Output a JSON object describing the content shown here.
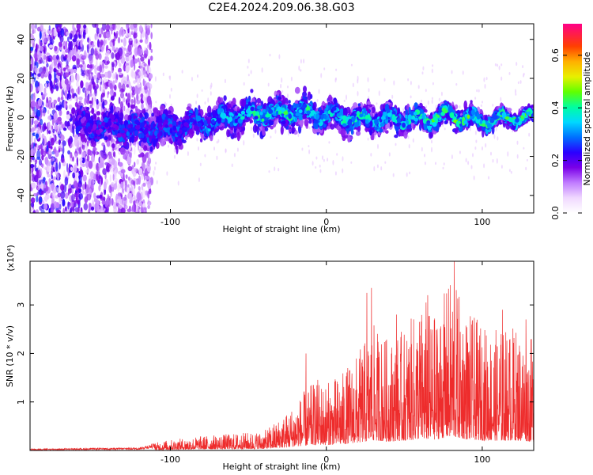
{
  "title": "C2E4.2024.209.06.38.G03",
  "chart_data": [
    {
      "type": "heatmap",
      "xlabel": "Height of straight line (km)",
      "ylabel": "Frequency (Hz)",
      "xlim": [
        -190,
        133
      ],
      "ylim": [
        -49,
        48
      ],
      "x_ticks": [
        -100,
        0,
        100
      ],
      "y_ticks": [
        -40,
        -20,
        0,
        20,
        40
      ],
      "colorbar": {
        "label": "Normalized spectral amplitude",
        "range": [
          0,
          0.72
        ],
        "ticks": [
          0.0,
          0.2,
          0.4,
          0.6
        ],
        "tick_labels": [
          "0.0",
          "0.2",
          "0.4",
          "0.6"
        ]
      },
      "profile": {
        "x": [
          -160,
          -140,
          -120,
          -100,
          -80,
          -60,
          -40,
          -20,
          0,
          20,
          40,
          60,
          80,
          100,
          120,
          133
        ],
        "center_freq": [
          -4,
          -5,
          -6,
          -6,
          -3,
          1,
          2,
          3,
          1,
          -1,
          -1,
          -1,
          1,
          -2,
          0,
          0
        ],
        "half_width": [
          10,
          12,
          14,
          12,
          10,
          11,
          11,
          12,
          10,
          11,
          10,
          9,
          8,
          7,
          6,
          5
        ],
        "peak_amplitude": [
          0.25,
          0.3,
          0.3,
          0.3,
          0.35,
          0.4,
          0.45,
          0.45,
          0.4,
          0.45,
          0.4,
          0.45,
          0.5,
          0.45,
          0.5,
          0.45
        ]
      },
      "noise_region": {
        "x_start": -190,
        "x_end": -112
      }
    },
    {
      "type": "line",
      "xlabel": "Height of straight line (km)",
      "ylabel": "SNR (10 * v/v)",
      "y_multiplier": "(x10⁴)",
      "xlim": [
        -190,
        133
      ],
      "ylim": [
        0,
        3.9
      ],
      "x_ticks": [
        -100,
        0,
        100
      ],
      "y_ticks": [
        1,
        2,
        3
      ],
      "color": "#ee2c2c",
      "envelope": {
        "x": [
          -190,
          -120,
          -105,
          -80,
          -60,
          -40,
          -25,
          -15,
          -5,
          0,
          10,
          20,
          30,
          40,
          50,
          60,
          70,
          80,
          90,
          100,
          110,
          120,
          133
        ],
        "y_max": [
          0.03,
          0.06,
          0.2,
          0.3,
          0.35,
          0.4,
          0.8,
          1.2,
          1.5,
          1.4,
          1.6,
          2.0,
          2.6,
          2.3,
          2.5,
          3.0,
          2.8,
          3.6,
          2.9,
          2.6,
          2.5,
          2.6,
          2.3
        ]
      },
      "peaks": [
        {
          "x": 82,
          "y": 3.9
        },
        {
          "x": 65,
          "y": 3.2
        },
        {
          "x": 29,
          "y": 3.35
        },
        {
          "x": 26,
          "y": 3.25
        },
        {
          "x": 64,
          "y": 3.05
        },
        {
          "x": 45,
          "y": 2.8
        },
        {
          "x": 113,
          "y": 2.9
        },
        {
          "x": 128,
          "y": 2.7
        },
        {
          "x": -13,
          "y": 2.0
        }
      ]
    }
  ]
}
